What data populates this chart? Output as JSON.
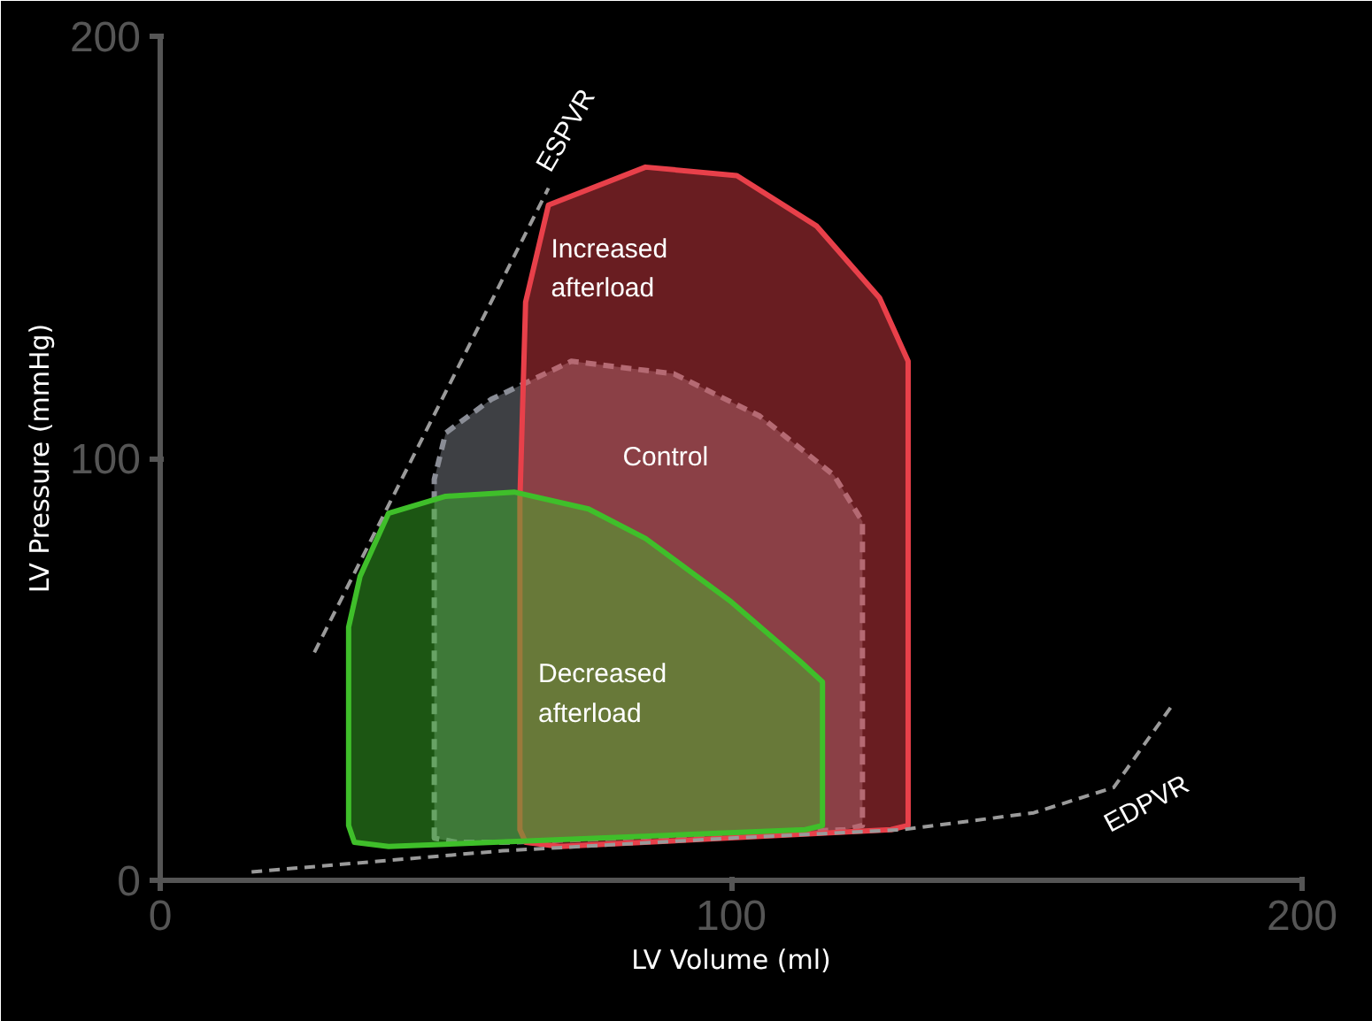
{
  "chart_data": {
    "type": "area",
    "xlabel": "LV Volume (ml)",
    "ylabel": "LV Pressure (mmHg)",
    "xlim": [
      0,
      200
    ],
    "ylim": [
      0,
      200
    ],
    "xticks": [
      0,
      100,
      200
    ],
    "yticks": [
      0,
      100,
      200
    ],
    "grid": false,
    "series": [
      {
        "name": "Control",
        "color": "#8a8d96",
        "line_style": "dashed",
        "x": [
          48,
          48,
          50,
          58,
          72,
          90,
          105,
          118,
          123,
          123,
          120,
          60,
          52,
          48
        ],
        "values": [
          10,
          95,
          106,
          114,
          123,
          120,
          110,
          96,
          85,
          13,
          12,
          9,
          9,
          10
        ]
      },
      {
        "name": "Increased\nafterload",
        "color": "#e8404a",
        "line_style": "solid",
        "x": [
          63,
          63,
          64,
          68,
          85,
          101,
          115,
          126,
          131,
          131,
          128,
          70,
          64,
          63
        ],
        "values": [
          12,
          90,
          137,
          160,
          169,
          167,
          155,
          138,
          123,
          13,
          12,
          8,
          9,
          12
        ]
      },
      {
        "name": "Decreased\nafterload",
        "color": "#3fbf2a",
        "line_style": "solid",
        "x": [
          33,
          33,
          35,
          40,
          50,
          62,
          75,
          85,
          100,
          112,
          116,
          116,
          113,
          40,
          34,
          33
        ],
        "values": [
          13,
          60,
          72,
          87,
          91,
          92,
          88,
          81,
          66,
          52,
          47,
          13,
          12,
          8,
          9,
          13
        ]
      },
      {
        "name": "ESPVR",
        "type": "line",
        "color": "#9a9a9a",
        "line_style": "dashed",
        "x": [
          27,
          68
        ],
        "values": [
          54,
          164
        ]
      },
      {
        "name": "EDPVR",
        "type": "line",
        "color": "#9a9a9a",
        "line_style": "dashed",
        "x": [
          16,
          60,
          100,
          130,
          153,
          167,
          177
        ],
        "values": [
          2,
          7,
          10,
          12,
          16,
          22,
          41
        ]
      }
    ]
  }
}
